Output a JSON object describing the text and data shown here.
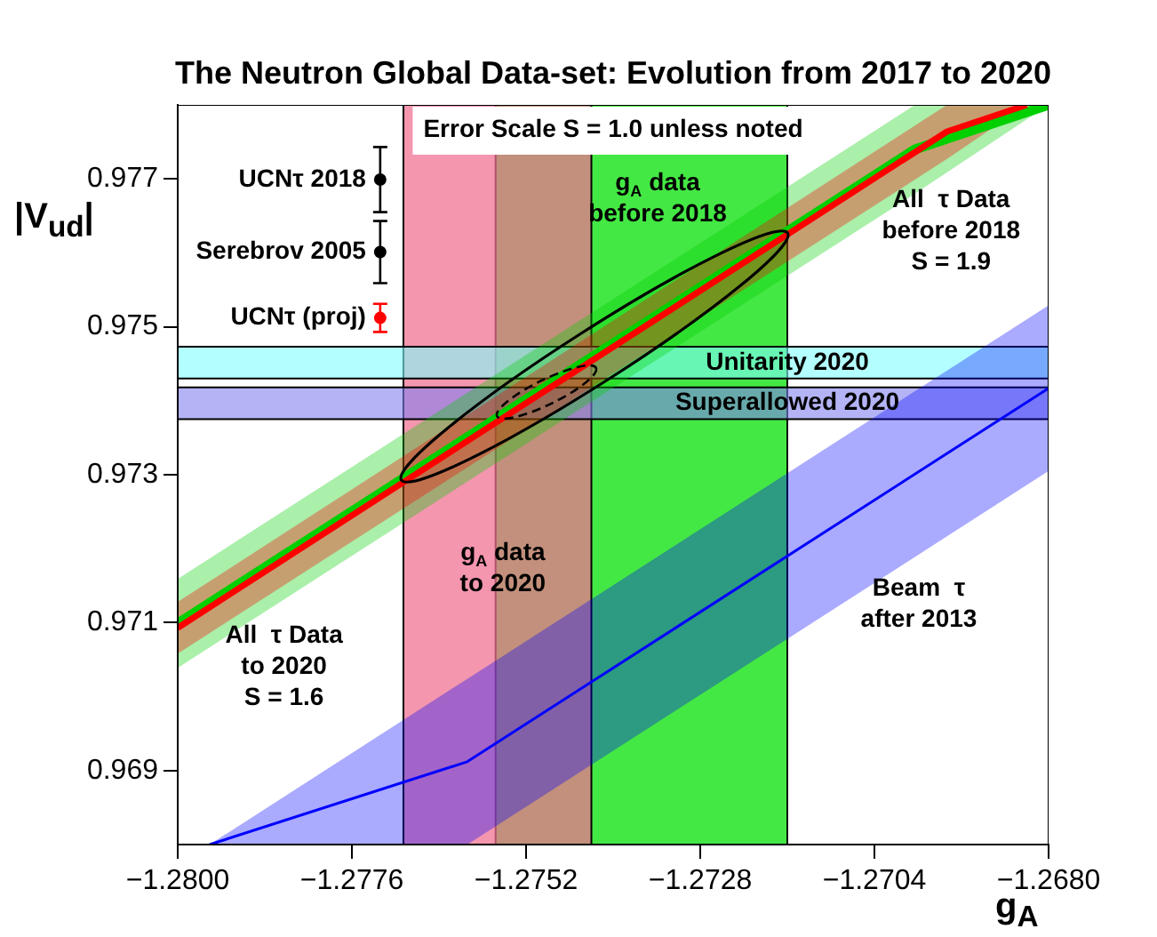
{
  "chart_data": {
    "type": "line",
    "title": "The Neutron Global Data-set: Evolution from 2017 to 2020",
    "xlabel": "g$_{A}$",
    "ylabel": "|V$_{ud}$|",
    "xlim": [
      -1.28,
      -1.268
    ],
    "ylim": [
      0.968,
      0.978
    ],
    "xticks": [
      {
        "value": -1.28,
        "label": "−1.2800"
      },
      {
        "value": -1.2776,
        "label": "−1.2776"
      },
      {
        "value": -1.2752,
        "label": "−1.2752"
      },
      {
        "value": -1.2728,
        "label": "−1.2728"
      },
      {
        "value": -1.2704,
        "label": "−1.2704"
      },
      {
        "value": -1.268,
        "label": "−1.2680"
      }
    ],
    "yticks": [
      0.969,
      0.971,
      0.973,
      0.975,
      0.977
    ],
    "legend": false,
    "bands": [
      {
        "axis": "x",
        "from": -1.27562,
        "to": -1.2716,
        "color": "#00e000"
      },
      {
        "axis": "x",
        "from": -1.27689,
        "to": -1.2743,
        "color": "#f07090"
      },
      {
        "axis": "y",
        "from": 0.9743,
        "to": 0.97473,
        "label": "Unitarity 2020",
        "color": "#80ffff"
      },
      {
        "axis": "y",
        "from": 0.97375,
        "to": 0.97418,
        "label": "Superallowed 2020",
        "color": "#8080f0"
      }
    ],
    "series": [
      {
        "type": "line",
        "color": "#00d000",
        "x": [
          -1.28,
          -1.26984,
          -1.268
        ],
        "values": [
          0.97099,
          0.9774,
          0.978
        ],
        "lower": [
          0.97039,
          0.9768,
          0.978
        ],
        "upper": [
          0.97159,
          0.978,
          0.978
        ]
      },
      {
        "type": "line",
        "color": "#ff0000",
        "x": [
          -1.28,
          -1.2694,
          -1.2683
        ],
        "values": [
          0.97093,
          0.97764,
          0.978
        ],
        "lower": [
          0.97058,
          0.97727,
          0.978
        ],
        "upper": [
          0.97128,
          0.978,
          0.978
        ]
      },
      {
        "type": "line",
        "color": "#0000ff",
        "x": [
          -1.27956,
          -1.27601,
          -1.268
        ],
        "values": [
          0.968,
          0.96912,
          0.97417
        ],
        "lower": [
          0.968,
          0.968,
          0.97305
        ],
        "upper": [
          0.968,
          0.97024,
          0.97529
        ]
      },
      {
        "type": "scatter",
        "name": "UCNτ 2018",
        "color": "#000000",
        "marker": "circle",
        "x": [
          -1.27721
        ],
        "values": [
          0.97699
        ],
        "errors": [
          0.00044
        ]
      },
      {
        "type": "scatter",
        "name": "Serebrov 2005",
        "color": "#000000",
        "marker": "circle",
        "x": [
          -1.27721
        ],
        "values": [
          0.97601
        ],
        "errors": [
          0.00042
        ]
      },
      {
        "type": "scatter",
        "name": "UCNτ (proj)",
        "color": "#ff0000",
        "marker": "circle",
        "x": [
          -1.27721
        ],
        "values": [
          0.97512
        ],
        "errors": [
          0.00019
        ]
      }
    ],
    "annotations": [
      "Error Scale S = 1.0 unless noted",
      "g$_{A}$ data\nbefore 2018",
      {
        "text": "g$_{A}$ data\nto 2020",
        "x": -1.27552,
        "y": 0.97173
      },
      "All  τ Data\nbefore 2018\nS = 1.9",
      "All  τ Data\nto 2020\nS = 1.6",
      "Beam  τ\nafter 2013"
    ]
  }
}
